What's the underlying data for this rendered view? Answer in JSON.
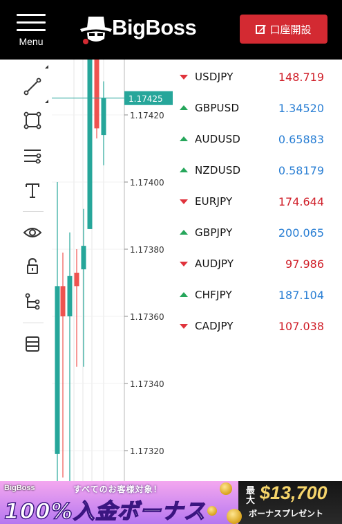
{
  "header": {
    "menu_label": "Menu",
    "logo_text": "BigBoss",
    "open_account_label": "口座開設"
  },
  "toolbar": {
    "tools": [
      {
        "name": "trend-line-tool",
        "icon": "trend-line-icon"
      },
      {
        "name": "rectangle-tool",
        "icon": "rectangle-icon"
      },
      {
        "name": "settings-lines-tool",
        "icon": "sliders-icon"
      },
      {
        "name": "text-tool",
        "icon": "text-icon"
      },
      {
        "name": "visibility-tool",
        "icon": "eye-icon"
      },
      {
        "name": "lock-tool",
        "icon": "lock-icon"
      },
      {
        "name": "tree-tool",
        "icon": "tree-icon"
      },
      {
        "name": "layers-tool",
        "icon": "layers-icon"
      }
    ]
  },
  "chart_data": {
    "type": "candlestick",
    "y_ticks": [
      "1.17420",
      "1.17400",
      "1.17380",
      "1.17360",
      "1.17340",
      "1.17320"
    ],
    "y_range": [
      1.17305,
      1.17435
    ],
    "current_price": "1.17425",
    "current_value": 1.17425,
    "colors": {
      "up": "#26a69a",
      "down": "#ef5350",
      "price_tag": "#26a69a",
      "grid": "#e6e6e6"
    },
    "candles": [
      {
        "o": 1.17319,
        "h": 1.174,
        "l": 1.17307,
        "c": 1.17369,
        "dir": "up"
      },
      {
        "o": 1.17369,
        "h": 1.17379,
        "l": 1.17312,
        "c": 1.1736,
        "dir": "down"
      },
      {
        "o": 1.1736,
        "h": 1.17385,
        "l": 1.1731,
        "c": 1.17372,
        "dir": "up"
      },
      {
        "o": 1.17373,
        "h": 1.1738,
        "l": 1.17345,
        "c": 1.17369,
        "dir": "down"
      },
      {
        "o": 1.17374,
        "h": 1.17392,
        "l": 1.17345,
        "c": 1.17381,
        "dir": "up"
      },
      {
        "o": 1.17386,
        "h": 1.1745,
        "l": 1.17386,
        "c": 1.17448,
        "dir": "up"
      },
      {
        "o": 1.17448,
        "h": 1.17451,
        "l": 1.17413,
        "c": 1.17416,
        "dir": "down"
      },
      {
        "o": 1.17414,
        "h": 1.1743,
        "l": 1.17405,
        "c": 1.17425,
        "dir": "up"
      }
    ]
  },
  "watchlist": {
    "colors": {
      "up": "#2a7fd4",
      "down": "#d0202a"
    },
    "items": [
      {
        "symbol": "USDJPY",
        "price": "148.719",
        "dir": "down"
      },
      {
        "symbol": "GBPUSD",
        "price": "1.34520",
        "dir": "up"
      },
      {
        "symbol": "AUDUSD",
        "price": "0.65883",
        "dir": "up"
      },
      {
        "symbol": "NZDUSD",
        "price": "0.58179",
        "dir": "up"
      },
      {
        "symbol": "EURJPY",
        "price": "174.644",
        "dir": "down"
      },
      {
        "symbol": "GBPJPY",
        "price": "200.065",
        "dir": "up"
      },
      {
        "symbol": "AUDJPY",
        "price": "97.986",
        "dir": "down"
      },
      {
        "symbol": "CHFJPY",
        "price": "187.104",
        "dir": "up"
      },
      {
        "symbol": "CADJPY",
        "price": "107.038",
        "dir": "down"
      }
    ]
  },
  "banner": {
    "logo": "BigBoss",
    "subtitle": "すべてのお客様対象！",
    "headline": "100%入金ボーナス",
    "max_label": "最大",
    "amount": "$13,700",
    "present": "ボーナスプレゼント"
  }
}
